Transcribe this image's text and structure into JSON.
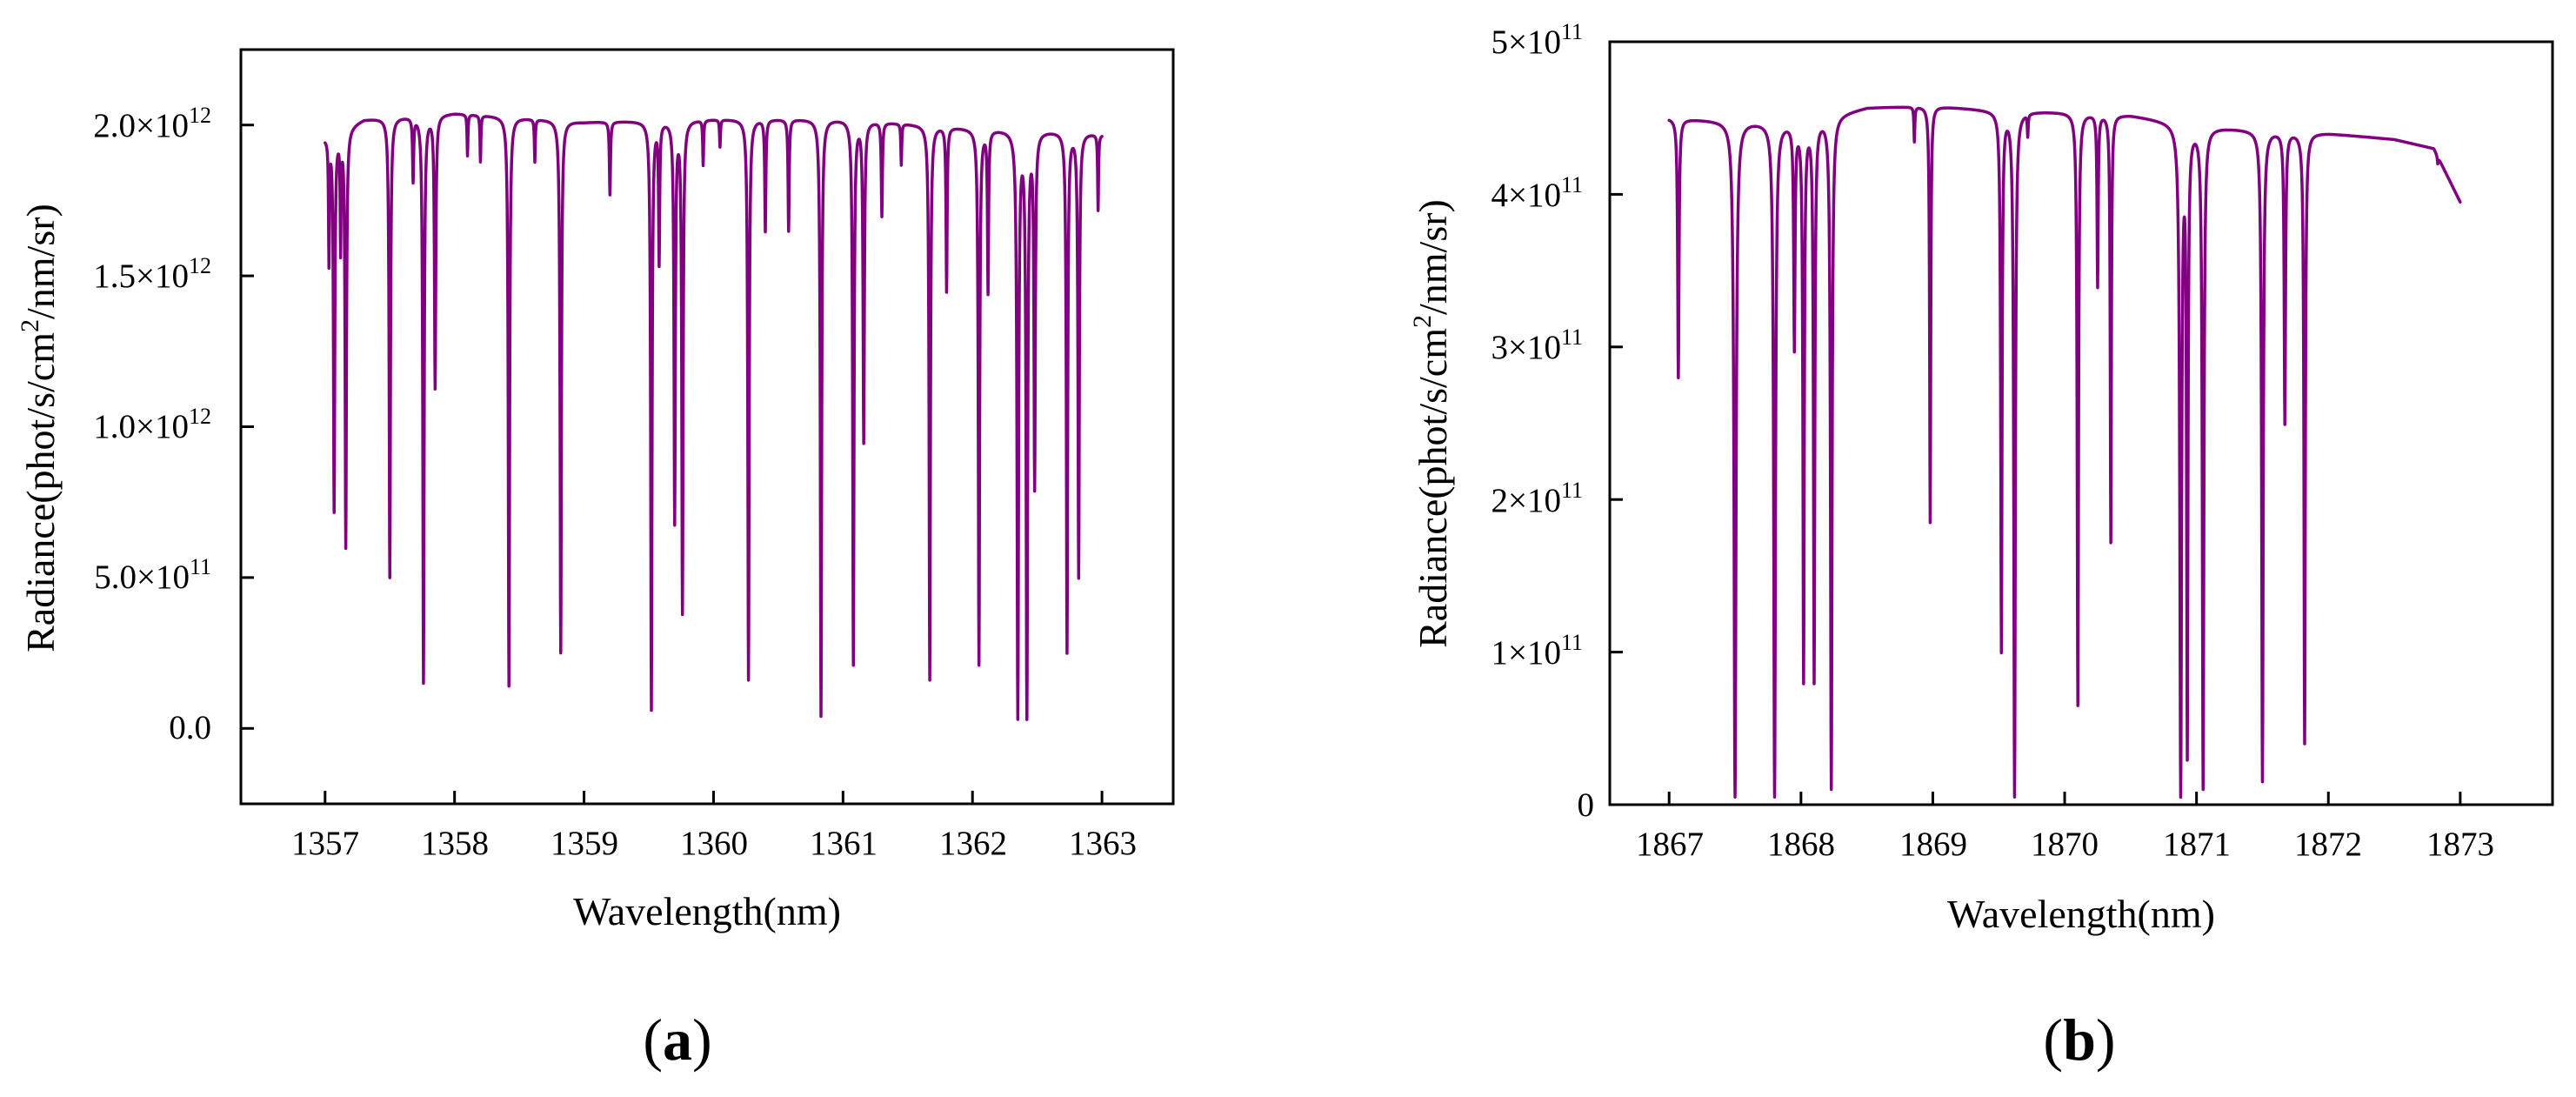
{
  "chart_data": [
    {
      "type": "line",
      "panel_label": "a",
      "xlabel": "Wavelength(nm)",
      "ylabel_parts": [
        "Radiance(phot/s/cm",
        "2",
        "/nm/sr)"
      ],
      "xlim": [
        1356.35,
        1363.55
      ],
      "ylim": [
        -250000000000.0,
        2250000000000.0
      ],
      "x_ticks": [
        1357,
        1358,
        1359,
        1360,
        1361,
        1362,
        1363
      ],
      "x_tick_labels": [
        "1357",
        "1358",
        "1359",
        "1360",
        "1361",
        "1362",
        "1363"
      ],
      "y_ticks": [
        0,
        500000000000.0,
        1000000000000.0,
        1500000000000.0,
        2000000000000.0
      ],
      "y_tick_labels": [
        {
          "mantissa": "0.0",
          "exp": ""
        },
        {
          "mantissa": "5.0×10",
          "exp": "11"
        },
        {
          "mantissa": "1.0×10",
          "exp": "12"
        },
        {
          "mantissa": "1.5×10",
          "exp": "12"
        },
        {
          "mantissa": "2.0×10",
          "exp": "12"
        }
      ],
      "series": [
        {
          "name": "radiance",
          "color": "#800080",
          "x_range": [
            1357.0,
            1363.0
          ],
          "continuum": [
            [
              1357.0,
              1960000000000.0
            ],
            [
              1357.3,
              2020000000000.0
            ],
            [
              1358.0,
              2040000000000.0
            ],
            [
              1359.0,
              2010000000000.0
            ],
            [
              1360.0,
              2020000000000.0
            ],
            [
              1361.0,
              2020000000000.0
            ],
            [
              1362.0,
              1990000000000.0
            ],
            [
              1362.8,
              1980000000000.0
            ],
            [
              1363.0,
              1970000000000.0
            ]
          ],
          "lines": [
            [
              1357.03,
              1550000000000.0,
              0.004
            ],
            [
              1357.07,
              720000000000.0,
              0.006
            ],
            [
              1357.12,
              1600000000000.0,
              0.004
            ],
            [
              1357.16,
              600000000000.0,
              0.006
            ],
            [
              1357.5,
              500000000000.0,
              0.006
            ],
            [
              1357.68,
              1820000000000.0,
              0.005
            ],
            [
              1357.76,
              150000000000.0,
              0.006
            ],
            [
              1357.85,
              1130000000000.0,
              0.006
            ],
            [
              1358.1,
              1900000000000.0,
              0.004
            ],
            [
              1358.2,
              1880000000000.0,
              0.004
            ],
            [
              1358.42,
              140000000000.0,
              0.006
            ],
            [
              1358.62,
              1880000000000.0,
              0.004
            ],
            [
              1358.82,
              250000000000.0,
              0.006
            ],
            [
              1359.2,
              1770000000000.0,
              0.005
            ],
            [
              1359.52,
              60000000000.0,
              0.006
            ],
            [
              1359.58,
              1550000000000.0,
              0.005
            ],
            [
              1359.7,
              680000000000.0,
              0.006
            ],
            [
              1359.76,
              380000000000.0,
              0.006
            ],
            [
              1359.92,
              1870000000000.0,
              0.004
            ],
            [
              1360.05,
              1930000000000.0,
              0.004
            ],
            [
              1360.27,
              160000000000.0,
              0.006
            ],
            [
              1360.4,
              1650000000000.0,
              0.005
            ],
            [
              1360.58,
              1650000000000.0,
              0.005
            ],
            [
              1360.83,
              40000000000.0,
              0.006
            ],
            [
              1361.08,
              210000000000.0,
              0.006
            ],
            [
              1361.16,
              950000000000.0,
              0.006
            ],
            [
              1361.3,
              1700000000000.0,
              0.005
            ],
            [
              1361.45,
              1870000000000.0,
              0.004
            ],
            [
              1361.67,
              160000000000.0,
              0.006
            ],
            [
              1361.8,
              1450000000000.0,
              0.005
            ],
            [
              1362.05,
              210000000000.0,
              0.006
            ],
            [
              1362.12,
              1450000000000.0,
              0.005
            ],
            [
              1362.35,
              30000000000.0,
              0.007
            ],
            [
              1362.42,
              30000000000.0,
              0.007
            ],
            [
              1362.48,
              800000000000.0,
              0.006
            ],
            [
              1362.73,
              250000000000.0,
              0.006
            ],
            [
              1362.82,
              500000000000.0,
              0.006
            ],
            [
              1362.97,
              1720000000000.0,
              0.004
            ]
          ]
        }
      ]
    },
    {
      "type": "line",
      "panel_label": "b",
      "xlabel": "Wavelength(nm)",
      "ylabel_parts": [
        "Radiance(phot/s/cm",
        "2",
        "/nm/sr)"
      ],
      "xlim": [
        1866.55,
        1873.7
      ],
      "ylim": [
        0,
        500000000000.0
      ],
      "x_ticks": [
        1867,
        1868,
        1869,
        1870,
        1871,
        1872,
        1873
      ],
      "x_tick_labels": [
        "1867",
        "1868",
        "1869",
        "1870",
        "1871",
        "1872",
        "1873"
      ],
      "y_ticks": [
        0,
        100000000000.0,
        200000000000.0,
        300000000000.0,
        400000000000.0,
        500000000000.0
      ],
      "y_tick_labels": [
        {
          "mantissa": "0",
          "exp": ""
        },
        {
          "mantissa": "1×10",
          "exp": "11"
        },
        {
          "mantissa": "2×10",
          "exp": "11"
        },
        {
          "mantissa": "3×10",
          "exp": "11"
        },
        {
          "mantissa": "4×10",
          "exp": "11"
        },
        {
          "mantissa": "5×10",
          "exp": "11"
        }
      ],
      "series": [
        {
          "name": "radiance",
          "color": "#800080",
          "x_range": [
            1867.0,
            1873.0
          ],
          "continuum": [
            [
              1867.0,
              450000000000.0
            ],
            [
              1867.5,
              448000000000.0
            ],
            [
              1868.0,
              447000000000.0
            ],
            [
              1868.5,
              457000000000.0
            ],
            [
              1869.0,
              458000000000.0
            ],
            [
              1869.5,
              455000000000.0
            ],
            [
              1870.0,
              454000000000.0
            ],
            [
              1870.5,
              452000000000.0
            ],
            [
              1871.0,
              445000000000.0
            ],
            [
              1871.5,
              442000000000.0
            ],
            [
              1872.0,
              440000000000.0
            ],
            [
              1872.5,
              436000000000.0
            ],
            [
              1872.8,
              430000000000.0
            ],
            [
              1873.0,
              395000000000.0
            ]
          ],
          "lines": [
            [
              1867.07,
              280000000000.0,
              0.006
            ],
            [
              1867.5,
              5000000000.0,
              0.009
            ],
            [
              1867.8,
              5000000000.0,
              0.008
            ],
            [
              1867.95,
              300000000000.0,
              0.006
            ],
            [
              1868.02,
              80000000000.0,
              0.006
            ],
            [
              1868.1,
              80000000000.0,
              0.006
            ],
            [
              1868.23,
              10000000000.0,
              0.007
            ],
            [
              1868.86,
              435000000000.0,
              0.004
            ],
            [
              1868.98,
              185000000000.0,
              0.005
            ],
            [
              1869.52,
              100000000000.0,
              0.006
            ],
            [
              1869.62,
              5000000000.0,
              0.007
            ],
            [
              1869.72,
              440000000000.0,
              0.004
            ],
            [
              1870.1,
              65000000000.0,
              0.006
            ],
            [
              1870.25,
              340000000000.0,
              0.005
            ],
            [
              1870.35,
              172000000000.0,
              0.005
            ],
            [
              1870.88,
              5000000000.0,
              0.008
            ],
            [
              1870.93,
              30000000000.0,
              0.006
            ],
            [
              1871.05,
              10000000000.0,
              0.007
            ],
            [
              1871.5,
              15000000000.0,
              0.007
            ],
            [
              1871.67,
              250000000000.0,
              0.006
            ],
            [
              1871.82,
              40000000000.0,
              0.006
            ],
            [
              1872.83,
              420000000000.0,
              0.004
            ]
          ]
        }
      ]
    }
  ]
}
